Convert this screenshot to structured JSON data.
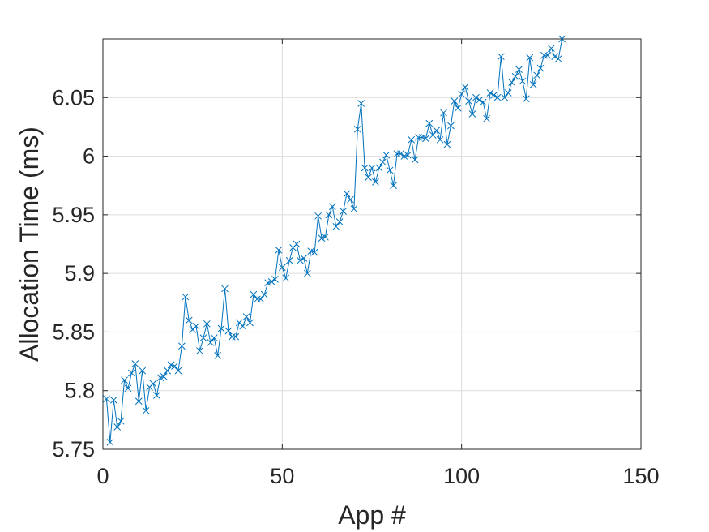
{
  "chart_data": {
    "type": "line",
    "title": "",
    "xlabel": "App #",
    "ylabel": "Allocation Time (ms)",
    "xlim": [
      0,
      150
    ],
    "ylim": [
      5.75,
      6.1
    ],
    "grid": true,
    "marker": "x",
    "series_color": "#0072BD",
    "xticks": [
      0,
      50,
      100,
      150
    ],
    "xtick_labels": [
      "0",
      "50",
      "100",
      "150"
    ],
    "yticks": [
      5.75,
      5.8,
      5.85,
      5.9,
      5.95,
      6.0,
      6.05
    ],
    "ytick_labels": [
      "5.75",
      "5.8",
      "5.85",
      "5.9",
      "5.95",
      "6",
      "6.05"
    ],
    "series": [
      {
        "x": [
          1,
          2,
          3,
          4,
          5,
          6,
          7,
          8,
          9,
          10,
          11,
          12,
          13,
          14,
          15,
          16,
          17,
          18,
          19,
          20,
          21,
          22,
          23,
          24,
          25,
          26,
          27,
          28,
          29,
          30,
          31,
          32,
          33,
          34,
          35,
          36,
          37,
          38,
          39,
          40,
          41,
          42,
          43,
          44,
          45,
          46,
          47,
          48,
          49,
          50,
          51,
          52,
          53,
          54,
          55,
          56,
          57,
          58,
          59,
          60,
          61,
          62,
          63,
          64,
          65,
          66,
          67,
          68,
          69,
          70,
          71,
          72,
          73,
          74,
          75,
          76,
          77,
          78,
          79,
          80,
          81,
          82,
          83,
          84,
          85,
          86,
          87,
          88,
          89,
          90,
          91,
          92,
          93,
          94,
          95,
          96,
          97,
          98,
          99,
          100,
          101,
          102,
          103,
          104,
          105,
          106,
          107,
          108,
          109,
          110,
          111,
          112,
          113,
          114,
          115,
          116,
          117,
          118,
          119,
          120,
          121,
          122,
          123,
          124,
          125,
          126,
          127,
          128
        ],
        "values": [
          5.793,
          5.756,
          5.792,
          5.769,
          5.774,
          5.809,
          5.802,
          5.815,
          5.823,
          5.791,
          5.817,
          5.783,
          5.803,
          5.806,
          5.796,
          5.811,
          5.812,
          5.817,
          5.822,
          5.821,
          5.817,
          5.838,
          5.88,
          5.86,
          5.852,
          5.855,
          5.834,
          5.845,
          5.857,
          5.841,
          5.845,
          5.83,
          5.853,
          5.887,
          5.851,
          5.846,
          5.846,
          5.858,
          5.855,
          5.863,
          5.858,
          5.882,
          5.878,
          5.878,
          5.882,
          5.892,
          5.893,
          5.895,
          5.92,
          5.905,
          5.896,
          5.911,
          5.922,
          5.925,
          5.911,
          5.913,
          5.9,
          5.919,
          5.918,
          5.949,
          5.93,
          5.931,
          5.95,
          5.957,
          5.94,
          5.944,
          5.953,
          5.968,
          5.963,
          5.955,
          6.023,
          6.045,
          5.99,
          5.982,
          5.99,
          5.978,
          5.99,
          5.995,
          6.001,
          5.988,
          5.975,
          6.002,
          6.002,
          6.0,
          6.001,
          6.014,
          5.997,
          6.016,
          6.016,
          6.015,
          6.028,
          6.018,
          6.022,
          6.014,
          6.037,
          6.01,
          6.026,
          6.047,
          6.041,
          6.053,
          6.059,
          6.047,
          6.036,
          6.05,
          6.048,
          6.046,
          6.032,
          6.054,
          6.052,
          6.05,
          6.085,
          6.05,
          6.054,
          6.063,
          6.068,
          6.074,
          6.064,
          6.049,
          6.084,
          6.061,
          6.069,
          6.075,
          6.086,
          6.086,
          6.092,
          6.085,
          6.083,
          6.1
        ]
      }
    ]
  }
}
